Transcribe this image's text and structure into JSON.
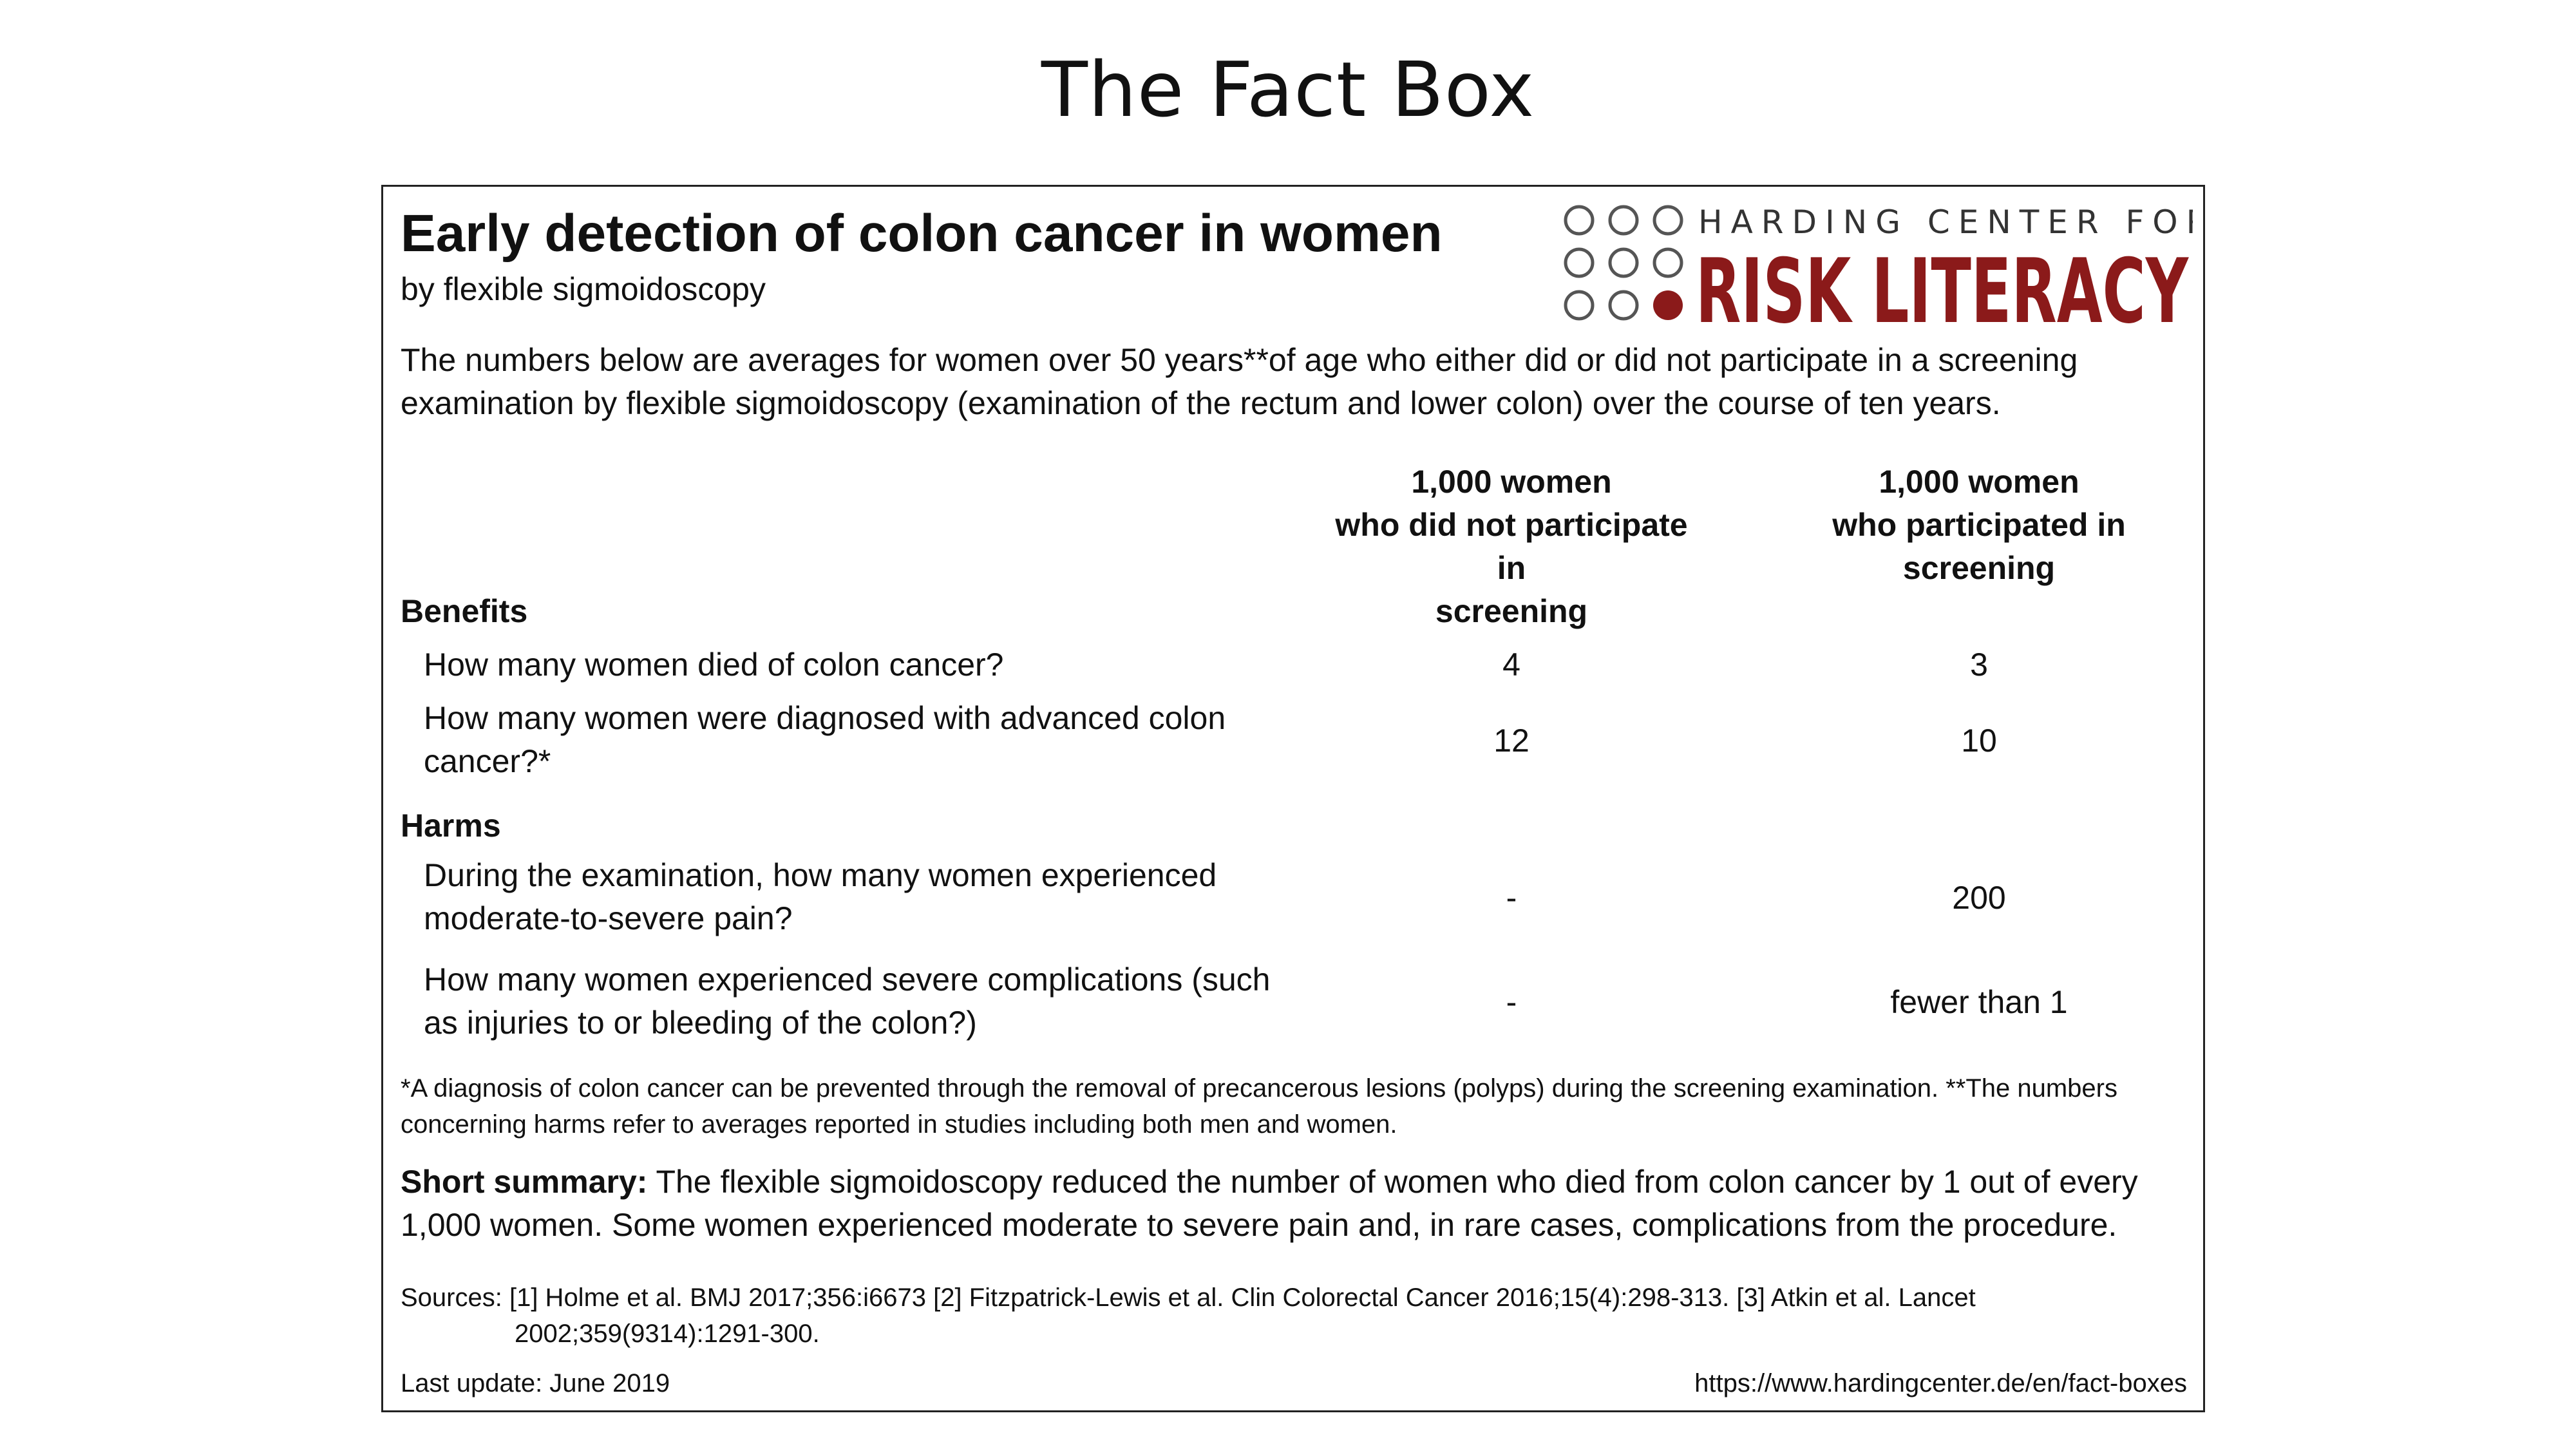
{
  "slide": {
    "title": "The Fact Box"
  },
  "factbox": {
    "title": "Early detection of colon cancer in women",
    "subtitle": "by flexible sigmoidoscopy",
    "logo": {
      "line1": "HARDING CENTER FOR",
      "line2": "RISK LITERACY",
      "accent_color": "#8b1a1a",
      "circle_color": "#555555"
    },
    "intro": "The numbers below are averages for women over 50 years**of age  who either did or did not participate in a screening examination by flexible sigmoidoscopy (examination of the rectum and lower colon) over the course of ten years.",
    "columns": [
      {
        "line1": "1,000 women",
        "line2": "who did not participate in",
        "line3": "screening"
      },
      {
        "line1": "1,000 women",
        "line2": "who participated in",
        "line3": "screening"
      }
    ],
    "sections": {
      "benefits": {
        "label": "Benefits",
        "rows": [
          {
            "question": "How many women died of colon cancer?",
            "no_screening": "4",
            "screening": "3"
          },
          {
            "question": "How many women were diagnosed with advanced colon cancer?*",
            "no_screening": "12",
            "screening": "10"
          }
        ]
      },
      "harms": {
        "label": "Harms",
        "rows": [
          {
            "question": "During the examination, how many women experienced moderate-to-severe pain?",
            "no_screening": "-",
            "screening": "200"
          },
          {
            "question": "How many women experienced severe complications (such as injuries to or bleeding of the colon?)",
            "no_screening": "-",
            "screening": "fewer than 1"
          }
        ]
      }
    },
    "footnote": "*A diagnosis of colon cancer can be prevented through the removal of precancerous lesions (polyps) during the screening examination. **The numbers concerning harms refer to averages reported in studies including both men and women.",
    "summary": {
      "label": "Short summary:",
      "text": "The flexible sigmoidoscopy reduced the number of women who died from colon cancer by 1 out of every 1,000 women. Some women experienced moderate to severe pain and, in rare cases, complications from the procedure."
    },
    "sources": "Sources: [1] Holme et al. BMJ 2017;356:i6673 [2] Fitzpatrick-Lewis et al. Clin Colorectal Cancer 2016;15(4):298-313. [3] Atkin et al. Lancet 2002;359(9314):1291-300.",
    "last_update": "Last update: June 2019",
    "url": "https://www.hardingcenter.de/en/fact-boxes"
  }
}
